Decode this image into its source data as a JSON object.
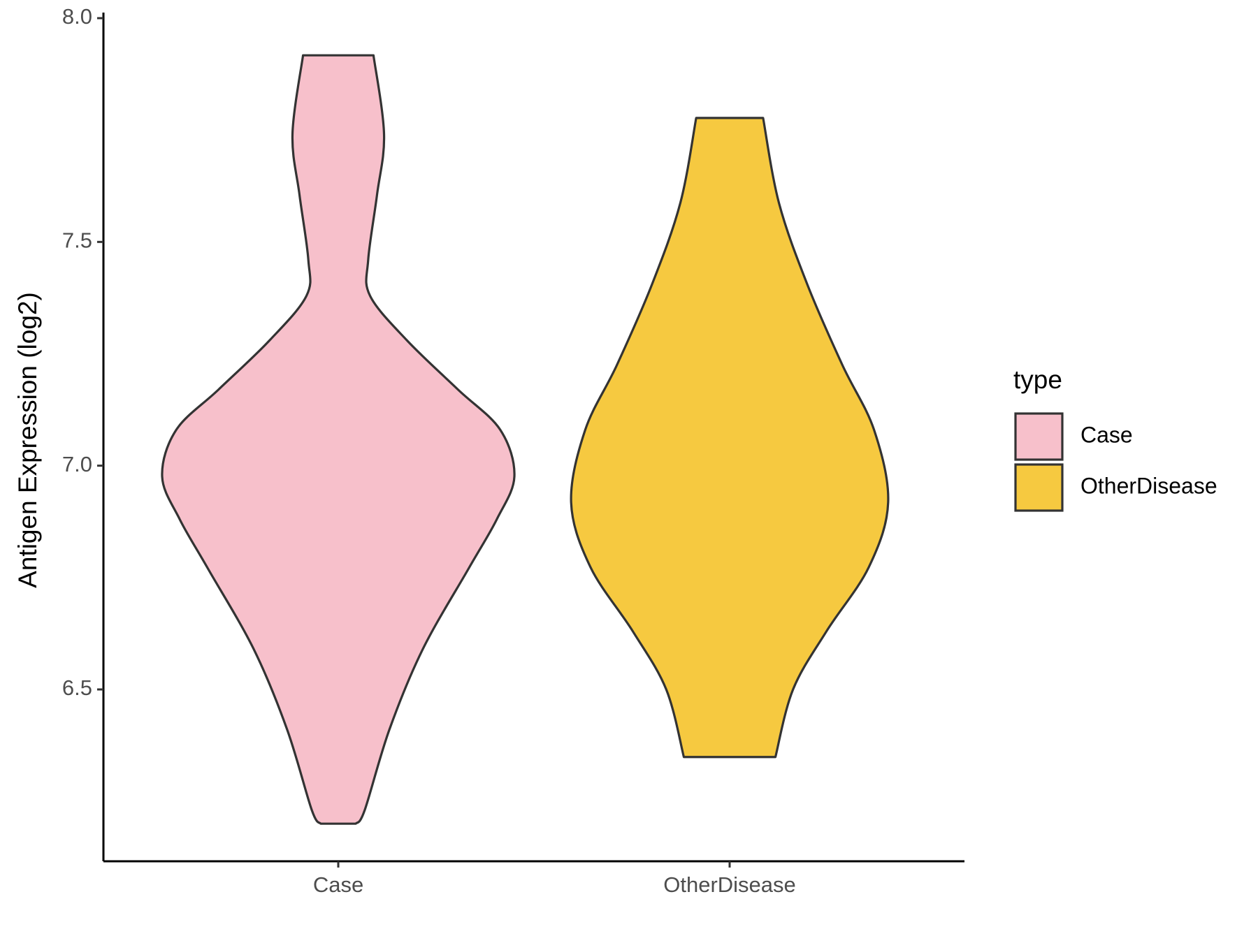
{
  "chart_data": {
    "type": "violin",
    "y_label": "Antigen Expression (log2)",
    "categories": [
      "Case",
      "OtherDisease"
    ],
    "ylim": [
      6.116,
      8.0
    ],
    "yticks": [
      {
        "value": 6.5,
        "label": "6.5"
      },
      {
        "value": 7.0,
        "label": "7.0"
      },
      {
        "value": 7.5,
        "label": "7.5"
      },
      {
        "value": 8.0,
        "label": "8.0"
      }
    ],
    "legend_title": "type",
    "legend_position": "right",
    "series": [
      {
        "name": "Case",
        "color": "#F7C0CB",
        "y": [
          7.917,
          7.74,
          7.605,
          7.46,
          7.38,
          7.28,
          7.17,
          7.08,
          6.976,
          6.88,
          6.77,
          6.59,
          6.41,
          6.23,
          6.2
        ],
        "width": [
          0.2,
          0.26,
          0.22,
          0.17,
          0.18,
          0.39,
          0.68,
          0.92,
          1.0,
          0.9,
          0.74,
          0.48,
          0.29,
          0.15,
          0.1
        ]
      },
      {
        "name": "OtherDisease",
        "color": "#F6C940",
        "y": [
          7.777,
          7.587,
          7.406,
          7.225,
          7.08,
          6.918,
          6.773,
          6.63,
          6.5,
          6.349
        ],
        "width": [
          0.19,
          0.28,
          0.44,
          0.64,
          0.82,
          0.9,
          0.79,
          0.55,
          0.36,
          0.26
        ]
      }
    ]
  }
}
